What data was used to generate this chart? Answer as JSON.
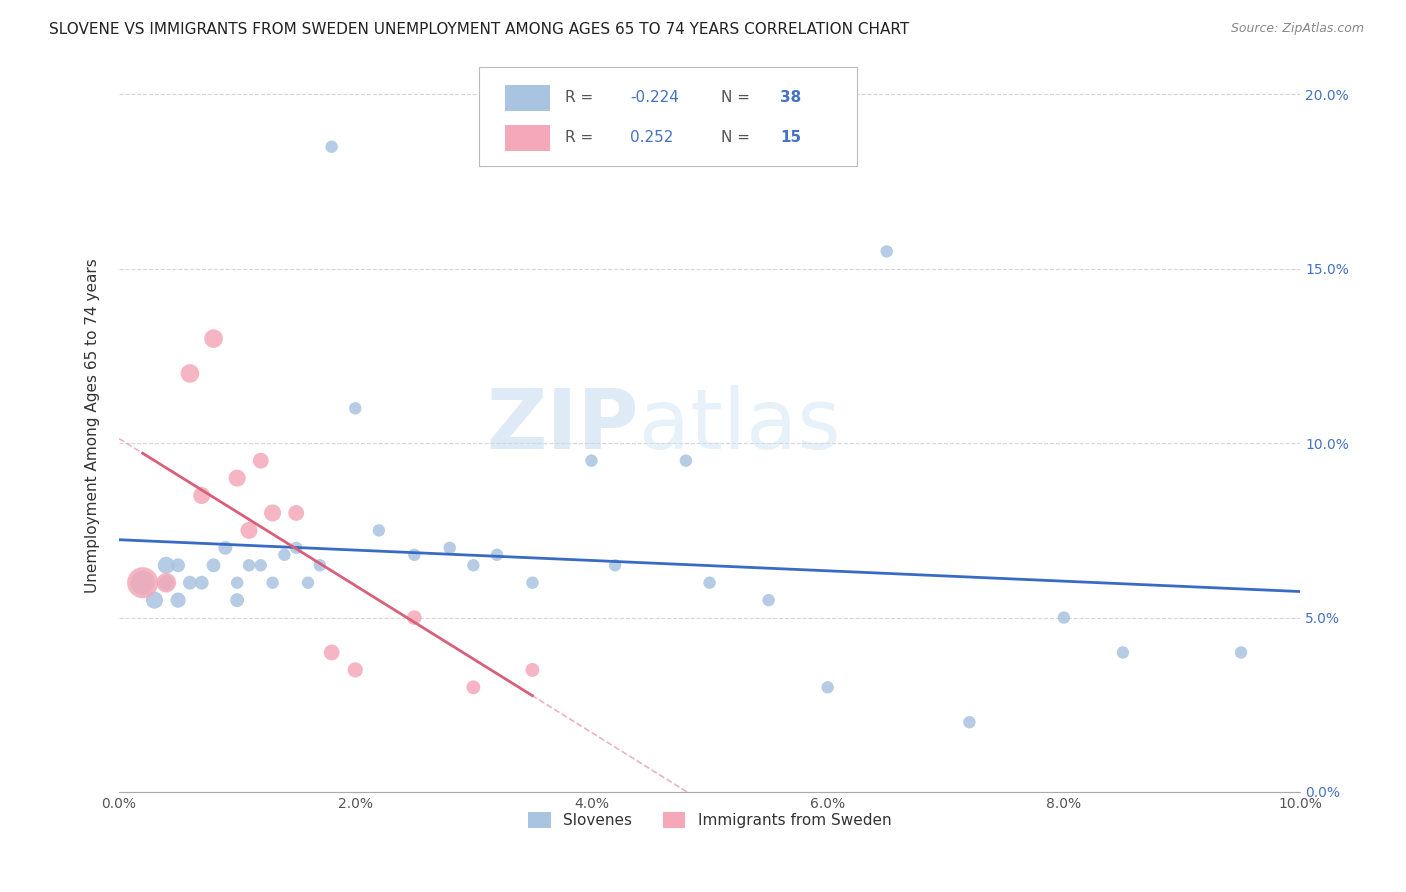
{
  "title": "SLOVENE VS IMMIGRANTS FROM SWEDEN UNEMPLOYMENT AMONG AGES 65 TO 74 YEARS CORRELATION CHART",
  "source": "Source: ZipAtlas.com",
  "ylabel": "Unemployment Among Ages 65 to 74 years",
  "xlim": [
    0,
    0.1
  ],
  "ylim": [
    0,
    0.21
  ],
  "xticks": [
    0.0,
    0.02,
    0.04,
    0.06,
    0.08,
    0.1
  ],
  "yticks": [
    0.0,
    0.05,
    0.1,
    0.15,
    0.2
  ],
  "xtick_labels": [
    "0.0%",
    "2.0%",
    "4.0%",
    "6.0%",
    "8.0%",
    "10.0%"
  ],
  "ytick_labels": [
    "0.0%",
    "5.0%",
    "10.0%",
    "15.0%",
    "20.0%"
  ],
  "slovene_color": "#a8c4e0",
  "sweden_color": "#f4a8b8",
  "slovene_line_color": "#3a6bc4",
  "sweden_solid_color": "#d9607a",
  "sweden_dashed_color": "#e8a0b0",
  "slovene_R": "-0.224",
  "slovene_N": "38",
  "sweden_R": "0.252",
  "sweden_N": "15",
  "legend_label_1": "Slovenes",
  "legend_label_2": "Immigrants from Sweden",
  "watermark_zip": "ZIP",
  "watermark_atlas": "atlas",
  "slovene_x": [
    0.002,
    0.003,
    0.004,
    0.004,
    0.005,
    0.005,
    0.006,
    0.007,
    0.008,
    0.009,
    0.01,
    0.01,
    0.011,
    0.012,
    0.013,
    0.014,
    0.015,
    0.016,
    0.017,
    0.018,
    0.02,
    0.022,
    0.025,
    0.028,
    0.03,
    0.032,
    0.035,
    0.04,
    0.042,
    0.048,
    0.05,
    0.055,
    0.06,
    0.065,
    0.072,
    0.08,
    0.085,
    0.095
  ],
  "slovene_y": [
    0.06,
    0.055,
    0.065,
    0.06,
    0.055,
    0.065,
    0.06,
    0.06,
    0.065,
    0.07,
    0.055,
    0.06,
    0.065,
    0.065,
    0.06,
    0.068,
    0.07,
    0.06,
    0.065,
    0.185,
    0.11,
    0.075,
    0.068,
    0.07,
    0.065,
    0.068,
    0.06,
    0.095,
    0.065,
    0.095,
    0.06,
    0.055,
    0.03,
    0.155,
    0.02,
    0.05,
    0.04,
    0.04
  ],
  "slovene_size": [
    300,
    150,
    150,
    120,
    120,
    100,
    100,
    100,
    100,
    100,
    100,
    80,
    80,
    80,
    80,
    80,
    80,
    80,
    80,
    80,
    80,
    80,
    80,
    80,
    80,
    80,
    80,
    80,
    80,
    80,
    80,
    80,
    80,
    80,
    80,
    80,
    80,
    80
  ],
  "sweden_x": [
    0.002,
    0.004,
    0.006,
    0.007,
    0.008,
    0.01,
    0.011,
    0.012,
    0.013,
    0.015,
    0.018,
    0.02,
    0.025,
    0.03,
    0.035
  ],
  "sweden_y": [
    0.06,
    0.06,
    0.12,
    0.085,
    0.13,
    0.09,
    0.075,
    0.095,
    0.08,
    0.08,
    0.04,
    0.035,
    0.05,
    0.03,
    0.035
  ],
  "sweden_size": [
    500,
    200,
    180,
    150,
    180,
    150,
    150,
    130,
    150,
    130,
    130,
    120,
    110,
    100,
    100
  ]
}
